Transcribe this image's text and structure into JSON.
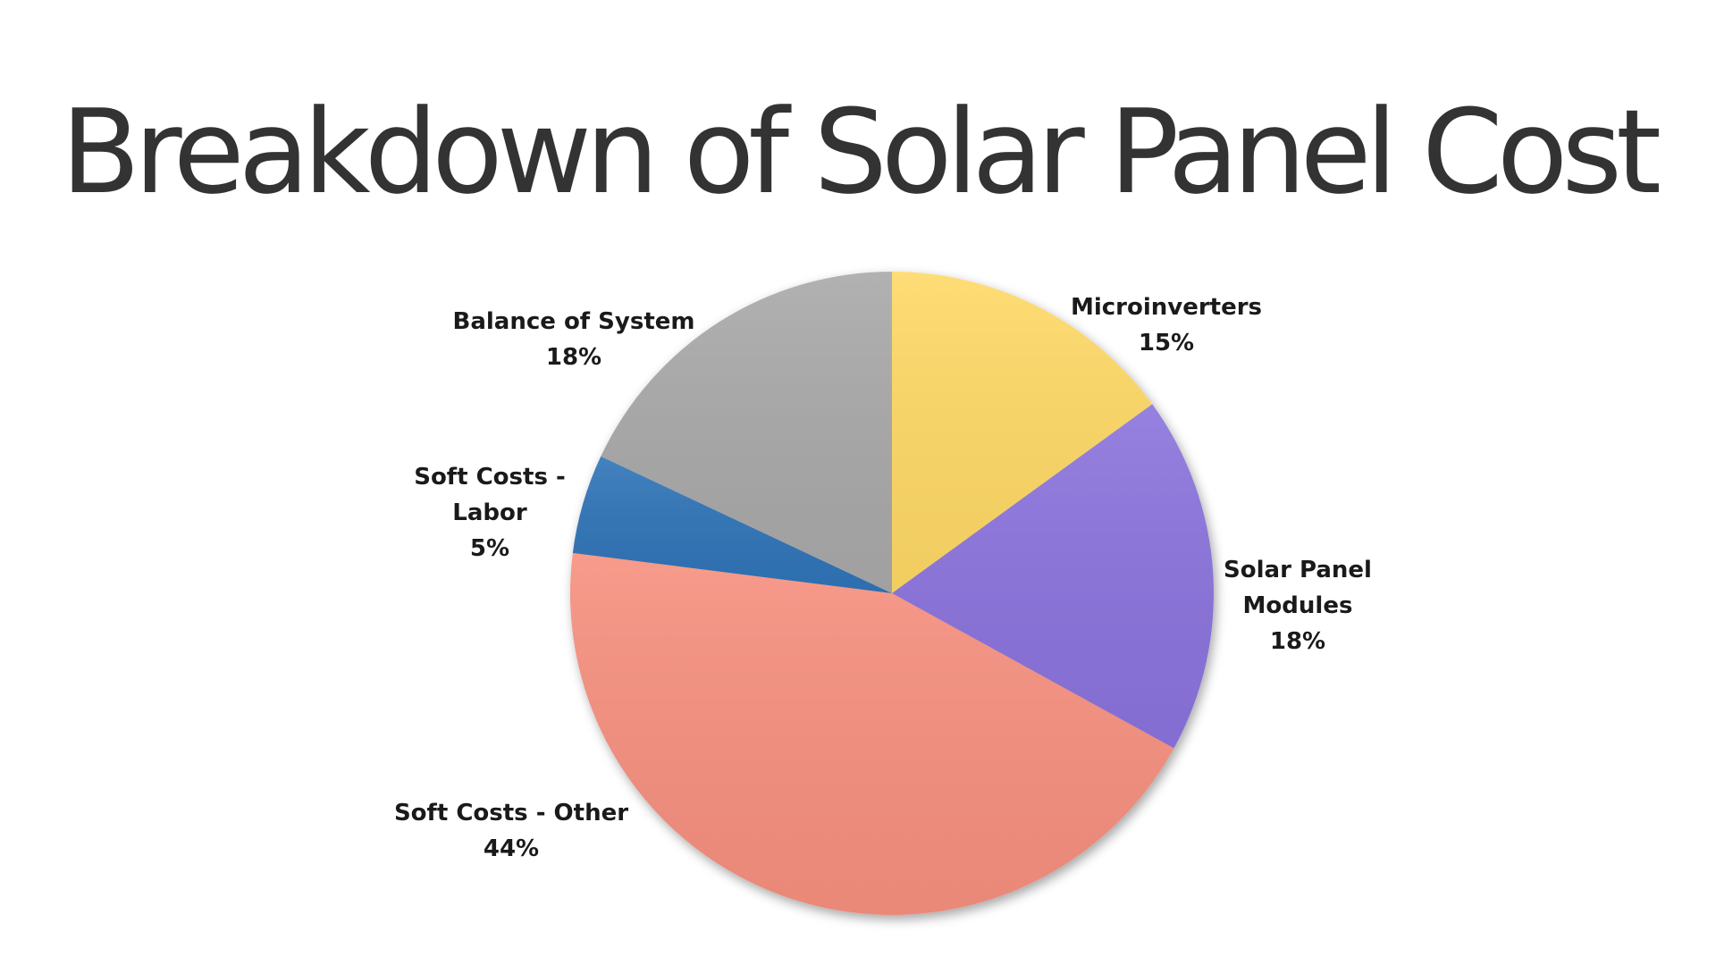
{
  "chart_data": {
    "type": "pie",
    "title": "Breakdown of Solar Panel Cost",
    "start_angle_deg": 0,
    "direction": "clockwise",
    "slices": [
      {
        "name": "Microinverters",
        "label_lines": [
          "Microinverters"
        ],
        "value": 15,
        "value_label": "15%",
        "color": "#FFD966"
      },
      {
        "name": "Solar Panel Modules",
        "label_lines": [
          "Solar Panel",
          "Modules"
        ],
        "value": 18,
        "value_label": "18%",
        "color": "#8B73DD"
      },
      {
        "name": "Soft Costs - Other",
        "label_lines": [
          "Soft Costs - Other"
        ],
        "value": 44,
        "value_label": "44%",
        "color": "#F7907F"
      },
      {
        "name": "Soft Costs - Labor",
        "label_lines": [
          "Soft Costs -",
          "Labor"
        ],
        "value": 5,
        "value_label": "5%",
        "color": "#2F74B8"
      },
      {
        "name": "Balance of System",
        "label_lines": [
          "Balance of System"
        ],
        "value": 18,
        "value_label": "18%",
        "color": "#A9A9A9"
      }
    ]
  }
}
